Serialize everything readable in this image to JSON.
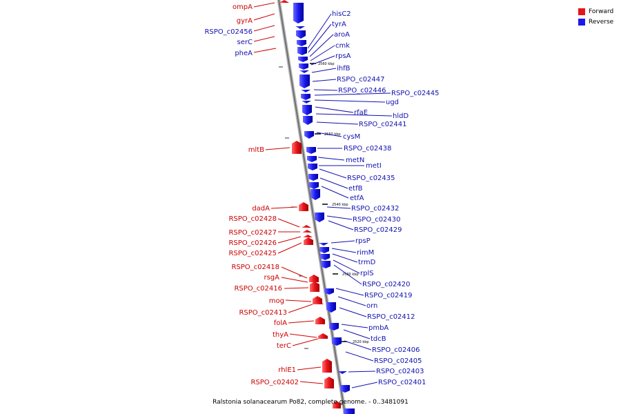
{
  "legend": [
    {
      "label": "Forward",
      "color": "#e8141c"
    },
    {
      "label": "Reverse",
      "color": "#1a1aee"
    }
  ],
  "caption": "Ralstonia solanacearum Po82, complete genome. - 0..3481091",
  "ticks": [
    "2560 kbp",
    "2550 kbp",
    "2540 kbp",
    "2530 kbp",
    "2520 kbp"
  ],
  "forward_genes": [
    "ompA",
    "gyrA",
    "RSPO_c02456",
    "serC",
    "pheA",
    "mltB",
    "dadA",
    "RSPO_c02428",
    "RSPO_c02427",
    "RSPO_c02426",
    "RSPO_c02425",
    "RSPO_c02418",
    "rsgA",
    "RSPO_c02416",
    "mog",
    "RSPO_c02413",
    "folA",
    "thyA",
    "terC",
    "rhlE1",
    "RSPO_c02402"
  ],
  "reverse_genes": [
    "hisC2",
    "tyrA",
    "aroA",
    "cmk",
    "rpsA",
    "ihfB",
    "RSPO_c02447",
    "RSPO_c02446",
    "RSPO_c02445",
    "ugd",
    "rfaE",
    "hldD",
    "RSPO_c02441",
    "cysM",
    "RSPO_c02438",
    "metN",
    "metI",
    "RSPO_c02435",
    "etfB",
    "etfA",
    "RSPO_c02432",
    "RSPO_c02430",
    "RSPO_c02429",
    "rpsP",
    "rimM",
    "trmD",
    "rplS",
    "RSPO_c02420",
    "RSPO_c02419",
    "orn",
    "RSPO_c02412",
    "pmbA",
    "tdcB",
    "RSPO_c02406",
    "RSPO_c02405",
    "RSPO_c02403",
    "RSPO_c02401"
  ],
  "colors": {
    "forward": "#e8141c",
    "reverse": "#1a1aee",
    "forward_label": "#cc0000",
    "reverse_label": "#1010b0",
    "backbone": "#9a9a9a"
  }
}
